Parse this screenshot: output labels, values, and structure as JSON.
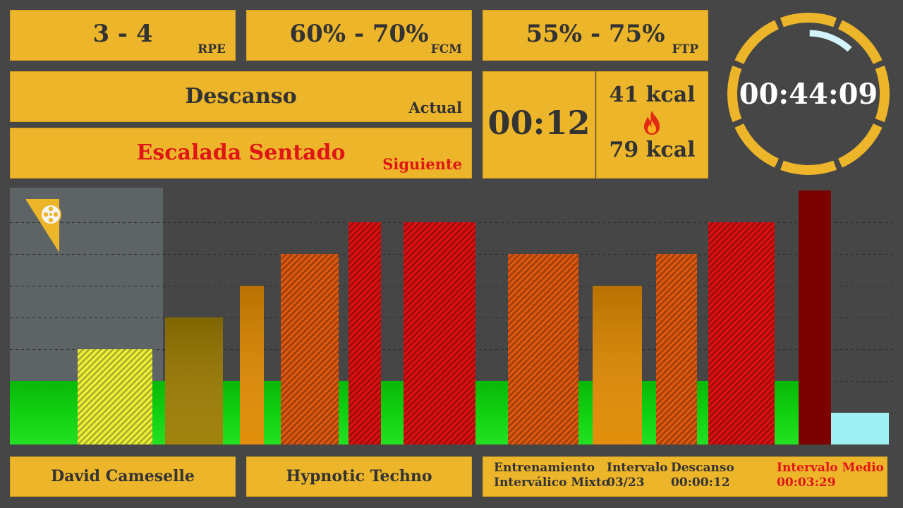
{
  "zones": {
    "rpe": {
      "value": "3 - 4",
      "label": "RPE"
    },
    "fcm": {
      "value": "60% - 70%",
      "label": "FCM"
    },
    "ftp": {
      "value": "55% - 75%",
      "label": "FTP"
    }
  },
  "current": {
    "name": "Descanso",
    "label": "Actual"
  },
  "next": {
    "name": "Escalada Sentado",
    "label": "Siguiente"
  },
  "interval_timer": "00:12",
  "calories": {
    "current": "41 kcal",
    "total": "79 kcal",
    "icon": "fire-icon"
  },
  "session_timer": {
    "time": "00:44:09",
    "progress": 0.08
  },
  "chart_data": {
    "type": "bar",
    "description": "Interval intensity profile",
    "current_zone_level": 2,
    "highlight_region_end_index": 2,
    "bars": [
      {
        "level": 3,
        "color": "#f2f53a",
        "pattern": "stripes",
        "width": 106
      },
      {
        "level": 4,
        "color": "#9b7b00",
        "pattern": "gradient",
        "width": 82
      },
      {
        "level": 5,
        "color": "#e08a00",
        "pattern": "gradient",
        "width": 34
      },
      {
        "level": 6,
        "color": "#e25a10",
        "pattern": "stripes",
        "width": 82
      },
      {
        "level": 7,
        "color": "#e01010",
        "pattern": "stripes",
        "width": 46
      },
      {
        "level": 7,
        "color": "#e01010",
        "pattern": "stripes",
        "width": 102
      },
      {
        "level": 6,
        "color": "#e25a10",
        "pattern": "stripes",
        "width": 100
      },
      {
        "level": 5,
        "color": "#e08a00",
        "pattern": "gradient",
        "width": 70
      },
      {
        "level": 6,
        "color": "#e25a10",
        "pattern": "stripes",
        "width": 58
      },
      {
        "level": 7,
        "color": "#e01010",
        "pattern": "stripes",
        "width": 94
      },
      {
        "level": 8,
        "color": "#7d0000",
        "pattern": "solid",
        "width": 46
      },
      {
        "level": 1,
        "color": "#9ef0f2",
        "pattern": "solid",
        "width": 82
      }
    ],
    "max_level": 8,
    "logo_icon": "film-reel-icon"
  },
  "footer": {
    "user": "David Cameselle",
    "music": "Hypnotic Techno",
    "session_name_line1": "Entrenamiento",
    "session_name_line2": "Interválico Mixto",
    "interval_label": "Intervalo",
    "interval_value": "03/23",
    "rest_label": "Descanso",
    "rest_value": "00:00:12",
    "avg_label": "Intervalo Medio",
    "avg_value": "00:03:29"
  }
}
